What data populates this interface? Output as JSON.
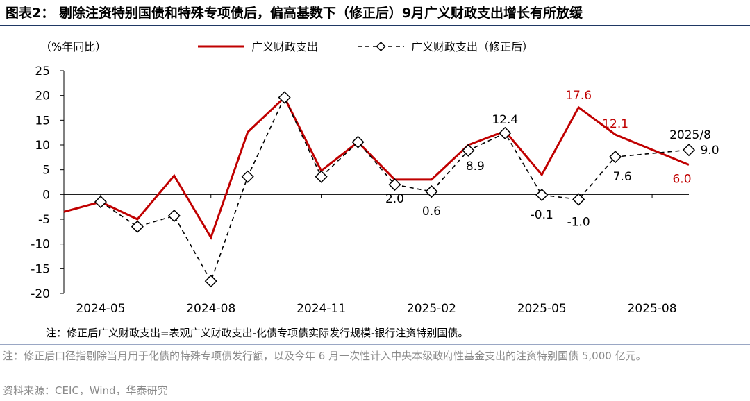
{
  "title": "图表2：   剔除注资特别国债和特殊专项债后，偏高基数下（修正后）9月广义财政支出增长有所放缓",
  "note": "注：修正后广义财政支出=表观广义财政支出-化债专项债实际发行规模-银行注资特别国债。",
  "footnote": "注：修正后口径指剔除当月用于化债的特殊专项债发行额，以及今年 6 月一次性计入中央本级政府性基金支出的注资特别国债 5,000 亿元。",
  "source": "资料来源：CEIC，Wind，华泰研究",
  "colors": {
    "series1": "#c00000",
    "series2": "#000000",
    "axis": "#000000"
  },
  "chart_data": {
    "type": "line",
    "ylabel": "（%年同比）",
    "ylim": [
      -20,
      25
    ],
    "yticks": [
      25,
      20,
      15,
      10,
      5,
      0,
      -5,
      -10,
      -15,
      -20
    ],
    "x": [
      "2024-04",
      "2024-05",
      "2024-06",
      "2024-07",
      "2024-08",
      "2024-09",
      "2024-10",
      "2024-11",
      "2024-12",
      "2025-01",
      "2025-02",
      "2025-03",
      "2025-04",
      "2025-05",
      "2025-06",
      "2025-07",
      "2025-08",
      "2025-09"
    ],
    "xtick_labels": [
      "2024-05",
      "2024-08",
      "2024-11",
      "2025-02",
      "2025-05",
      "2025-08"
    ],
    "series": [
      {
        "name": "广义财政支出",
        "style": "solid",
        "values": [
          -3.5,
          -1.5,
          -5.0,
          3.8,
          -8.7,
          12.6,
          19.6,
          4.8,
          10.6,
          3.0,
          3.0,
          10.0,
          12.8,
          4.0,
          17.6,
          12.1,
          null,
          6.0
        ],
        "labels": [
          null,
          null,
          null,
          null,
          null,
          null,
          null,
          null,
          null,
          null,
          null,
          null,
          null,
          null,
          "17.6",
          "12.1",
          null,
          "6.0"
        ]
      },
      {
        "name": "广义财政支出（修正后）",
        "style": "dashed-diamond",
        "values": [
          null,
          -1.5,
          -6.5,
          -4.3,
          -17.5,
          3.6,
          19.6,
          3.6,
          10.6,
          2.0,
          0.6,
          8.9,
          12.4,
          -0.1,
          -1.0,
          7.6,
          null,
          9.0
        ],
        "labels": [
          null,
          null,
          null,
          null,
          null,
          null,
          null,
          null,
          null,
          "2.0",
          "0.6",
          "8.9",
          "12.4",
          "-0.1",
          "-1.0",
          "7.6",
          null,
          "9.0"
        ]
      }
    ],
    "annotations": [
      "2025/8"
    ]
  }
}
